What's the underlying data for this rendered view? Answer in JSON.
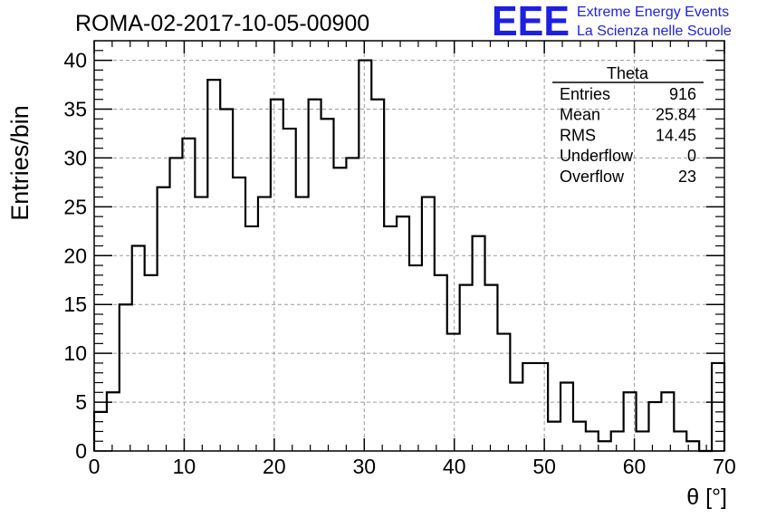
{
  "header": {
    "run_title": "ROMA-02-2017-10-05-00900",
    "logo_text": "EEE",
    "brand_line1": "Extreme Energy Events",
    "brand_line2": "La Scienza nelle Scuole"
  },
  "colors": {
    "brand": "#1f1fe0",
    "line": "#000000",
    "grid": "#9a9a9a"
  },
  "stats": {
    "title": "Theta",
    "rows": [
      {
        "label": "Entries",
        "value": "916"
      },
      {
        "label": "Mean",
        "value": "25.84"
      },
      {
        "label": "RMS",
        "value": "14.45"
      },
      {
        "label": "Underflow",
        "value": "0"
      },
      {
        "label": "Overflow",
        "value": "23"
      }
    ]
  },
  "chart_data": {
    "type": "histogram",
    "title": "ROMA-02-2017-10-05-00900",
    "xlabel": "θ [°]",
    "ylabel": "Entries/bin",
    "xlim": [
      0,
      70
    ],
    "ylim": [
      0,
      42
    ],
    "bin_width": 1.4,
    "x_ticks": [
      0,
      10,
      20,
      30,
      40,
      50,
      60,
      70
    ],
    "y_ticks": [
      0,
      5,
      10,
      15,
      20,
      25,
      30,
      35,
      40
    ],
    "grid": true,
    "values": [
      4,
      6,
      15,
      21,
      18,
      27,
      30,
      32,
      26,
      38,
      35,
      28,
      23,
      26,
      36,
      33,
      26,
      36,
      34,
      29,
      30,
      40,
      36,
      23,
      24,
      19,
      26,
      18,
      12,
      17,
      22,
      17,
      12,
      7,
      9,
      9,
      3,
      7,
      3,
      2,
      1,
      2,
      6,
      2,
      5,
      6,
      2,
      1,
      0,
      9
    ]
  }
}
